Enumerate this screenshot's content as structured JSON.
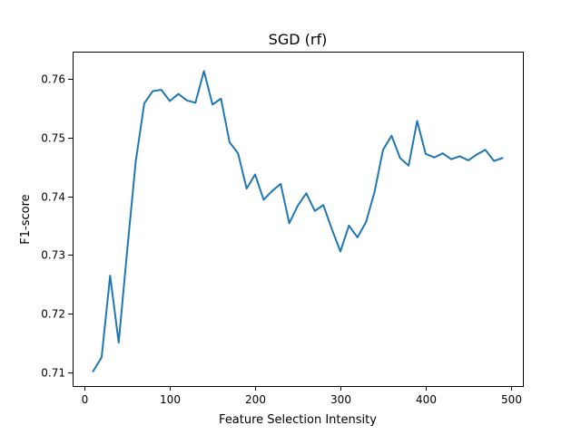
{
  "chart_data": {
    "type": "line",
    "title": "SGD (rf)",
    "xlabel": "Feature Selection Intensity",
    "ylabel": "F1-score",
    "xlim": [
      -14,
      514
    ],
    "ylim": [
      0.7077,
      0.7646
    ],
    "xticks": [
      0,
      100,
      200,
      300,
      400,
      500
    ],
    "yticks": [
      0.71,
      0.72,
      0.73,
      0.74,
      0.75,
      0.76
    ],
    "ytick_labels": [
      "0.71",
      "0.72",
      "0.73",
      "0.74",
      "0.75",
      "0.76"
    ],
    "grid": false,
    "series": [
      {
        "color": "#1f77b4",
        "x": [
          10,
          20,
          30,
          40,
          50,
          60,
          70,
          80,
          90,
          100,
          110,
          120,
          130,
          140,
          150,
          160,
          170,
          180,
          190,
          200,
          210,
          220,
          230,
          240,
          250,
          260,
          270,
          280,
          290,
          300,
          310,
          320,
          330,
          340,
          350,
          360,
          370,
          380,
          390,
          400,
          410,
          420,
          430,
          440,
          450,
          460,
          470,
          480,
          490
        ],
        "y": [
          0.7102,
          0.7126,
          0.7265,
          0.7151,
          0.7308,
          0.7459,
          0.7558,
          0.7579,
          0.7581,
          0.7562,
          0.7574,
          0.7563,
          0.7559,
          0.7613,
          0.7556,
          0.7566,
          0.7492,
          0.7473,
          0.7413,
          0.7437,
          0.7394,
          0.7409,
          0.7421,
          0.7354,
          0.7384,
          0.7405,
          0.7375,
          0.7385,
          0.7344,
          0.7306,
          0.735,
          0.733,
          0.7356,
          0.7407,
          0.7479,
          0.7503,
          0.7465,
          0.7452,
          0.7528,
          0.7472,
          0.7466,
          0.7473,
          0.7463,
          0.7468,
          0.7461,
          0.7471,
          0.7479,
          0.746,
          0.7465
        ]
      }
    ]
  }
}
